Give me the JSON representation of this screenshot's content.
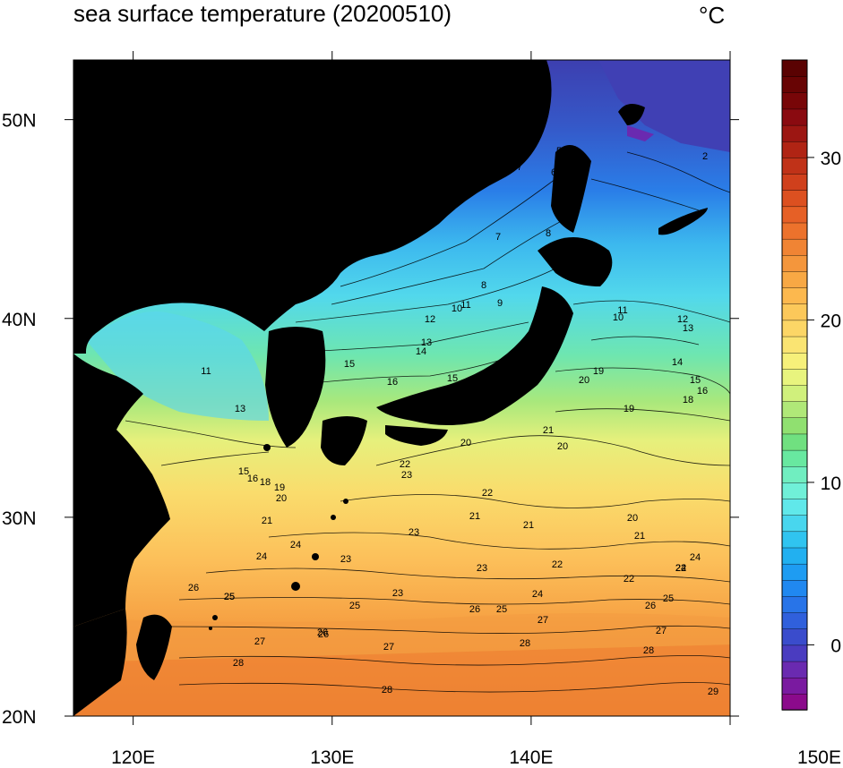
{
  "title": "sea surface temperature (20200510)",
  "units": "°C",
  "map": {
    "lon_range": [
      117,
      150
    ],
    "lat_range": [
      20,
      53
    ],
    "lon_ticks": [
      {
        "value": 120,
        "label": "120E"
      },
      {
        "value": 130,
        "label": "130E"
      },
      {
        "value": 140,
        "label": "140E"
      },
      {
        "value": 150,
        "label": "150E"
      }
    ],
    "lat_ticks": [
      {
        "value": 20,
        "label": "20N"
      },
      {
        "value": 30,
        "label": "30N"
      },
      {
        "value": 40,
        "label": "40N"
      },
      {
        "value": 50,
        "label": "50N"
      }
    ],
    "land_color": "#000000"
  },
  "colorbar": {
    "min": -4,
    "max": 36,
    "tick_values": [
      0,
      10,
      20,
      30
    ],
    "tick_labels": [
      "0",
      "10",
      "20",
      "30"
    ],
    "colors": [
      "#8b0a8b",
      "#7a1aa0",
      "#6a2ab0",
      "#4a3cc0",
      "#3a4ccc",
      "#3060dc",
      "#2874e8",
      "#2088f0",
      "#1e9cf2",
      "#22b0f0",
      "#30c4f0",
      "#48d6ee",
      "#60e8ea",
      "#70f0d8",
      "#70eec0",
      "#68e8a0",
      "#70e080",
      "#90e070",
      "#b0e878",
      "#d0f07c",
      "#e8f47e",
      "#f6f07a",
      "#fae472",
      "#fcd666",
      "#fcc85a",
      "#fcb84e",
      "#f8a844",
      "#f4963c",
      "#f08434",
      "#ec722c",
      "#e66026",
      "#dc5020",
      "#d0401c",
      "#c03218",
      "#b02414",
      "#9c1612",
      "#8a0a10",
      "#780608",
      "#680404",
      "#5a0202"
    ]
  },
  "contour_labels": [
    {
      "text": "2"
    },
    {
      "text": "5"
    },
    {
      "text": "6"
    },
    {
      "text": "7"
    },
    {
      "text": "8"
    },
    {
      "text": "7"
    },
    {
      "text": "8"
    },
    {
      "text": "9"
    },
    {
      "text": "10"
    },
    {
      "text": "11"
    },
    {
      "text": "12"
    },
    {
      "text": "13"
    },
    {
      "text": "14"
    },
    {
      "text": "15"
    },
    {
      "text": "15"
    },
    {
      "text": "16"
    },
    {
      "text": "10"
    },
    {
      "text": "11"
    },
    {
      "text": "12"
    },
    {
      "text": "13"
    },
    {
      "text": "14"
    },
    {
      "text": "15"
    },
    {
      "text": "16"
    },
    {
      "text": "18"
    },
    {
      "text": "19"
    },
    {
      "text": "20"
    },
    {
      "text": "19"
    },
    {
      "text": "11"
    },
    {
      "text": "13"
    },
    {
      "text": "15"
    },
    {
      "text": "16"
    },
    {
      "text": "18"
    },
    {
      "text": "19"
    },
    {
      "text": "20"
    },
    {
      "text": "21"
    },
    {
      "text": "22"
    },
    {
      "text": "23"
    },
    {
      "text": "20"
    },
    {
      "text": "21"
    },
    {
      "text": "20"
    },
    {
      "text": "22"
    },
    {
      "text": "23"
    },
    {
      "text": "21"
    },
    {
      "text": "21"
    },
    {
      "text": "22"
    },
    {
      "text": "20"
    },
    {
      "text": "21"
    },
    {
      "text": "22"
    },
    {
      "text": "24"
    },
    {
      "text": "23"
    },
    {
      "text": "23"
    },
    {
      "text": "22"
    },
    {
      "text": "23"
    },
    {
      "text": "24"
    },
    {
      "text": "25"
    },
    {
      "text": "24"
    },
    {
      "text": "25"
    },
    {
      "text": "26"
    },
    {
      "text": "25"
    },
    {
      "text": "26"
    },
    {
      "text": "27"
    },
    {
      "text": "26"
    },
    {
      "text": "27"
    },
    {
      "text": "28"
    },
    {
      "text": "24"
    },
    {
      "text": "25"
    },
    {
      "text": "26"
    },
    {
      "text": "27"
    },
    {
      "text": "28"
    },
    {
      "text": "29"
    },
    {
      "text": "25"
    },
    {
      "text": "26"
    },
    {
      "text": "27"
    },
    {
      "text": "28"
    },
    {
      "text": "28"
    },
    {
      "text": "24"
    },
    {
      "text": "22"
    }
  ]
}
